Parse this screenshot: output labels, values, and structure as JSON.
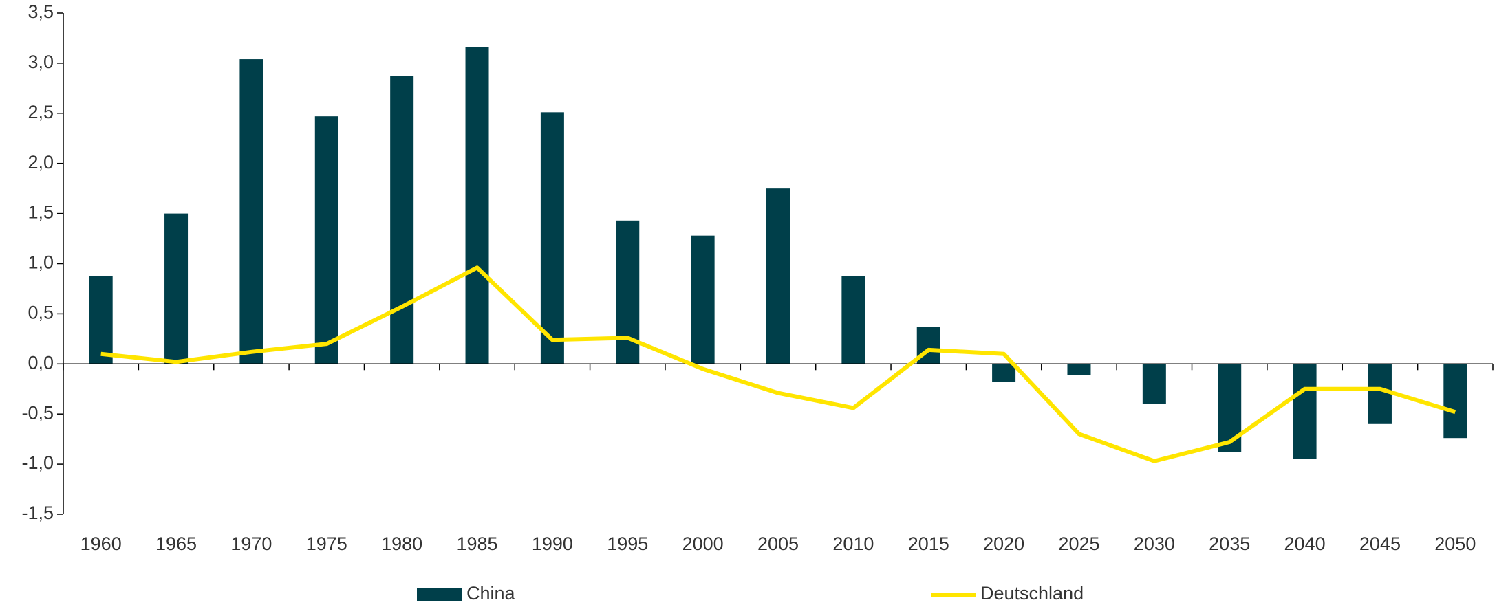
{
  "chart_data": {
    "type": "bar_line",
    "categories": [
      "1960",
      "1965",
      "1970",
      "1975",
      "1980",
      "1985",
      "1990",
      "1995",
      "2000",
      "2005",
      "2010",
      "2015",
      "2020",
      "2025",
      "2030",
      "2035",
      "2040",
      "2045",
      "2050"
    ],
    "series": [
      {
        "name": "China",
        "type": "bar",
        "color": "#003f4a",
        "values": [
          0.88,
          1.5,
          3.04,
          2.47,
          2.87,
          3.16,
          2.51,
          1.43,
          1.28,
          1.75,
          0.88,
          0.37,
          -0.18,
          -0.11,
          -0.4,
          -0.88,
          -0.95,
          -0.6,
          -0.74
        ]
      },
      {
        "name": "Deutschland",
        "type": "line",
        "color": "#ffe500",
        "values": [
          0.1,
          0.02,
          0.12,
          0.2,
          0.57,
          0.96,
          0.24,
          0.26,
          -0.05,
          -0.29,
          -0.44,
          0.14,
          0.1,
          -0.7,
          -0.97,
          -0.78,
          -0.25,
          -0.25,
          -0.48
        ]
      }
    ],
    "ylim": [
      -1.5,
      3.5
    ],
    "yticks": [
      {
        "value": -1.5,
        "label": "-1,5"
      },
      {
        "value": -1,
        "label": "-1,0"
      },
      {
        "value": -0.5,
        "label": "-0,5"
      },
      {
        "value": 0,
        "label": "0,0"
      },
      {
        "value": 0.5,
        "label": "0,5"
      },
      {
        "value": 1,
        "label": "1,0"
      },
      {
        "value": 1.5,
        "label": "1,5"
      },
      {
        "value": 2,
        "label": "2,0"
      },
      {
        "value": 2.5,
        "label": "2,5"
      },
      {
        "value": 3,
        "label": "3,0"
      },
      {
        "value": 3.5,
        "label": "3,5"
      }
    ],
    "legend": "bottom"
  }
}
